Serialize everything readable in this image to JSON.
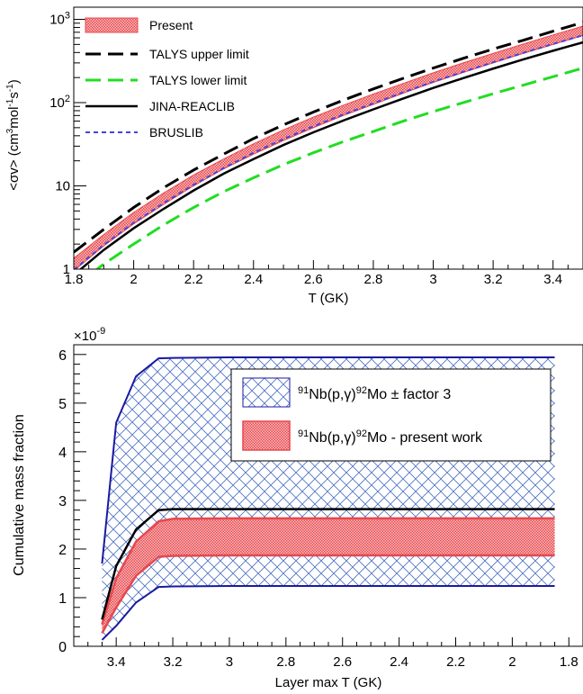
{
  "chart_data": [
    {
      "type": "line",
      "xlabel": "T (GK)",
      "ylabel_parts": [
        "<σv> (cm",
        "3",
        "mol",
        "-1",
        "s",
        "-1",
        ")"
      ],
      "xlim": [
        1.8,
        3.5
      ],
      "ylim": [
        1,
        1400
      ],
      "yscale": "log",
      "x_ticks": [
        1.8,
        2,
        2.2,
        2.4,
        2.6,
        2.8,
        3,
        3.2,
        3.4
      ],
      "x_tick_labels": [
        "1.8",
        "2",
        "2.2",
        "2.4",
        "2.6",
        "2.8",
        "3",
        "3.2",
        "3.4"
      ],
      "y_tick_labels": [
        {
          "value": 1,
          "base": "1",
          "exp": ""
        },
        {
          "value": 10,
          "base": "10",
          "exp": ""
        },
        {
          "value": 100,
          "base": "10",
          "exp": "2"
        },
        {
          "value": 1000,
          "base": "10",
          "exp": "3"
        }
      ],
      "legend_position": "top-left",
      "x": [
        1.8,
        1.9,
        2.0,
        2.1,
        2.2,
        2.3,
        2.4,
        2.5,
        2.6,
        2.7,
        2.8,
        2.9,
        3.0,
        3.1,
        3.2,
        3.3,
        3.4,
        3.5
      ],
      "series": [
        {
          "name": "Present",
          "kind": "band",
          "color": "#e8474c",
          "lower": [
            0.95,
            1.9,
            3.5,
            6.0,
            10,
            16,
            24,
            35,
            50,
            70,
            95,
            130,
            175,
            230,
            300,
            390,
            500,
            640
          ],
          "upper": [
            1.35,
            2.6,
            4.8,
            8.2,
            13.5,
            21,
            32,
            47,
            67,
            93,
            127,
            170,
            228,
            300,
            390,
            505,
            650,
            830
          ]
        },
        {
          "name": "TALYS upper limit",
          "kind": "line",
          "dash": "long",
          "color": "#000000",
          "values": [
            1.6,
            3.0,
            5.5,
            9.5,
            15.5,
            24,
            37,
            54,
            77,
            107,
            146,
            196,
            260,
            340,
            440,
            560,
            720,
            920
          ]
        },
        {
          "name": "TALYS lower limit",
          "kind": "line",
          "dash": "long",
          "color": "#22dd22",
          "values": [
            0.6,
            1.15,
            2.0,
            3.4,
            5.5,
            8.5,
            12.5,
            18,
            25,
            34,
            45,
            60,
            78,
            100,
            128,
            162,
            205,
            260
          ]
        },
        {
          "name": "JINA-REACLIB",
          "kind": "line",
          "dash": "solid",
          "color": "#000000",
          "values": [
            0.85,
            1.7,
            3.1,
            5.3,
            8.8,
            14,
            21,
            31,
            44,
            61,
            83,
            112,
            150,
            197,
            256,
            330,
            420,
            530
          ]
        },
        {
          "name": "BRUSLIB",
          "kind": "line",
          "dash": "short",
          "color": "#4444dd",
          "values": [
            0.98,
            1.95,
            3.6,
            6.2,
            10.3,
            16.3,
            25,
            36.5,
            52,
            72,
            98,
            133,
            178,
            234,
            305,
            395,
            505,
            645
          ]
        }
      ]
    },
    {
      "type": "line",
      "xlabel": "Layer max T (GK)",
      "ylabel": "Cumulative mass fraction",
      "x_reversed": true,
      "xlim": [
        3.55,
        1.75
      ],
      "ylim": [
        0,
        6.2
      ],
      "y_multiplier": "×10",
      "y_multiplier_exp": "-9",
      "x_ticks": [
        3.4,
        3.2,
        3,
        2.8,
        2.6,
        2.4,
        2.2,
        2,
        1.8
      ],
      "x_tick_labels": [
        "3.4",
        "3.2",
        "3",
        "2.8",
        "2.6",
        "2.4",
        "2.2",
        "2",
        "1.8"
      ],
      "y_ticks": [
        0,
        1,
        2,
        3,
        4,
        5,
        6
      ],
      "y_tick_labels": [
        "0",
        "1",
        "2",
        "3",
        "4",
        "5",
        "6"
      ],
      "legend_position": "top-right",
      "x": [
        3.45,
        3.4,
        3.33,
        3.25,
        3.2,
        3.0,
        2.5,
        2.0,
        1.85
      ],
      "series": [
        {
          "name": "factor3",
          "legend_parts": [
            "91",
            "Nb(p,γ)",
            "92",
            "Mo ± factor 3"
          ],
          "kind": "hatch-band",
          "color": "#1a1aa0",
          "lower": [
            0.13,
            0.42,
            0.9,
            1.22,
            1.23,
            1.24,
            1.24,
            1.24,
            1.24
          ],
          "upper": [
            1.7,
            4.6,
            5.55,
            5.92,
            5.93,
            5.94,
            5.94,
            5.94,
            5.94
          ]
        },
        {
          "name": "present",
          "legend_parts": [
            "91",
            "Nb(p,γ)",
            "92",
            "Mo - present work"
          ],
          "kind": "band",
          "color": "#e8474c",
          "lower": [
            0.27,
            0.8,
            1.45,
            1.84,
            1.86,
            1.87,
            1.87,
            1.87,
            1.87
          ],
          "upper": [
            0.45,
            1.4,
            2.15,
            2.57,
            2.62,
            2.63,
            2.63,
            2.63,
            2.63
          ]
        },
        {
          "name": "reference",
          "kind": "line",
          "color": "#000000",
          "values": [
            0.55,
            1.65,
            2.4,
            2.8,
            2.82,
            2.82,
            2.82,
            2.82,
            2.82
          ]
        }
      ]
    }
  ]
}
